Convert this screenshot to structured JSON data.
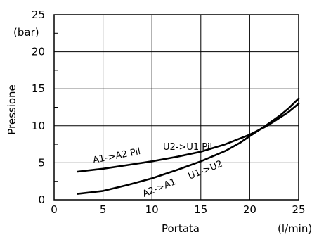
{
  "chart_data": {
    "type": "line",
    "xlabel": "Portata",
    "ylabel": "Pressione",
    "x_unit": "(l/min)",
    "y_unit": "(bar)",
    "xlim": [
      0,
      25
    ],
    "ylim": [
      0,
      25
    ],
    "x_ticks": [
      0,
      5,
      10,
      15,
      20,
      25
    ],
    "y_ticks": [
      0,
      5,
      10,
      15,
      20,
      25
    ],
    "grid": true,
    "line_color": "#000000",
    "series": [
      {
        "name": "A1->A2 Pil",
        "x": [
          2.4,
          5,
          7.5,
          10,
          12.5,
          15,
          17.5,
          20,
          21.5,
          22.5,
          24,
          25
        ],
        "y": [
          3.8,
          4.2,
          4.7,
          5.2,
          5.8,
          6.5,
          7.5,
          8.8,
          9.8,
          10.6,
          11.9,
          13.0
        ]
      },
      {
        "name": "U2->U1 Pil",
        "x": [
          2.4,
          5,
          7.5,
          10,
          12.5,
          15,
          17.5,
          20,
          21.5,
          22.5,
          24,
          25
        ],
        "y": [
          3.8,
          4.2,
          4.7,
          5.2,
          5.8,
          6.5,
          7.5,
          8.8,
          9.8,
          10.6,
          11.9,
          13.0
        ]
      },
      {
        "name": "A2->A1",
        "x": [
          2.4,
          5,
          7.5,
          10,
          12.5,
          15,
          17.5,
          19,
          20,
          21.5,
          23,
          24,
          25
        ],
        "y": [
          0.8,
          1.2,
          2.0,
          2.9,
          4.0,
          5.2,
          6.6,
          7.7,
          8.6,
          9.9,
          11.3,
          12.4,
          13.7
        ]
      },
      {
        "name": "U1->U2",
        "x": [
          2.4,
          5,
          7.5,
          10,
          12.5,
          15,
          17.5,
          19,
          20,
          21.5,
          23,
          24,
          25
        ],
        "y": [
          0.8,
          1.2,
          2.0,
          2.9,
          4.0,
          5.2,
          6.6,
          7.7,
          8.6,
          9.9,
          11.3,
          12.4,
          13.7
        ]
      }
    ]
  }
}
